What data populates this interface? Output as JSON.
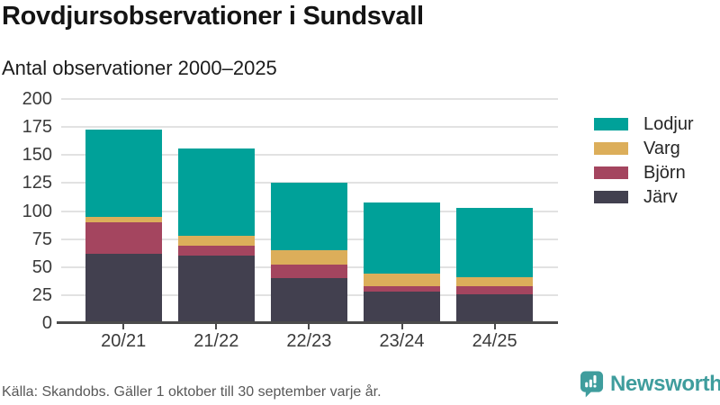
{
  "header": {
    "title": "Rovdjursobservationer i Sundsvall",
    "subtitle": "Antal observationer 2000–2025"
  },
  "chart_data": {
    "type": "bar",
    "stacked": true,
    "title": "Rovdjursobservationer i Sundsvall",
    "subtitle": "Antal observationer 2000–2025",
    "categories": [
      "20/21",
      "21/22",
      "22/23",
      "23/24",
      "24/25"
    ],
    "series": [
      {
        "name": "Järv",
        "color": "#42404f",
        "values": [
          62,
          60,
          40,
          28,
          26
        ]
      },
      {
        "name": "Björn",
        "color": "#a4455f",
        "values": [
          28,
          9,
          12,
          5,
          7
        ]
      },
      {
        "name": "Varg",
        "color": "#dcae5a",
        "values": [
          5,
          9,
          13,
          11,
          8
        ]
      },
      {
        "name": "Lodjur",
        "color": "#00a199",
        "values": [
          78,
          78,
          60,
          64,
          62
        ]
      }
    ],
    "stack_totals": [
      173,
      156,
      125,
      108,
      103
    ],
    "ylim": [
      0,
      200
    ],
    "yticks": [
      0,
      25,
      50,
      75,
      100,
      125,
      150,
      175,
      200
    ],
    "xlabel": "",
    "ylabel": "",
    "grid": "horizontal",
    "legend": {
      "position": "right",
      "order_top_to_bottom": [
        "Lodjur",
        "Varg",
        "Björn",
        "Järv"
      ]
    },
    "style": {
      "grid_color": "#e2e2e2",
      "axis_color": "#4b4b4b",
      "tick_label_color": "#3a3a3a"
    }
  },
  "footer": {
    "source": "Källa: Skandobs. Gäller 1 oktober till 30 september varje år.",
    "brand_name": "Newsworthy",
    "brand_color": "#3f9d9d",
    "brand_icon": "newsworthy-speech-bubble-bar-chart-icon"
  }
}
